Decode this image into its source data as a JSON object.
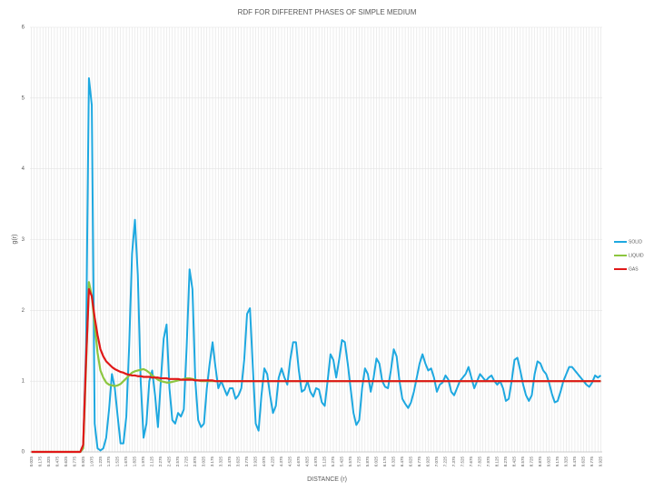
{
  "chart_data": {
    "type": "line",
    "title": "RDF FOR DIFFERENT PHASES OF SIMPLE MEDIUM",
    "x_label": "DISTANCE (r)",
    "y_label": "g(r)",
    "xlim": [
      0,
      9.95
    ],
    "ylim": [
      0,
      6
    ],
    "yticks": [
      0,
      1,
      2,
      3,
      4,
      5,
      6
    ],
    "grid": true,
    "legend": "right",
    "xticks": [
      0.025,
      0.175,
      0.325,
      0.475,
      0.625,
      0.775,
      0.925,
      1.075,
      1.225,
      1.375,
      1.525,
      1.675,
      1.825,
      1.975,
      2.125,
      2.275,
      2.425,
      2.575,
      2.725,
      2.875,
      3.025,
      3.175,
      3.325,
      3.475,
      3.625,
      3.775,
      3.925,
      4.075,
      4.225,
      4.375,
      4.525,
      4.675,
      4.825,
      4.975,
      5.125,
      5.275,
      5.425,
      5.575,
      5.725,
      5.875,
      6.025,
      6.175,
      6.325,
      6.475,
      6.625,
      6.775,
      6.925,
      7.075,
      7.225,
      7.375,
      7.525,
      7.675,
      7.825,
      7.975,
      8.125,
      8.275,
      8.425,
      8.575,
      8.725,
      8.875,
      9.025,
      9.175,
      9.325,
      9.475,
      9.625,
      9.775,
      9.925
    ],
    "x": [
      0.025,
      0.075,
      0.125,
      0.175,
      0.225,
      0.275,
      0.325,
      0.375,
      0.425,
      0.475,
      0.525,
      0.575,
      0.625,
      0.675,
      0.725,
      0.775,
      0.825,
      0.875,
      0.925,
      0.975,
      1.025,
      1.075,
      1.125,
      1.175,
      1.225,
      1.275,
      1.325,
      1.375,
      1.425,
      1.475,
      1.525,
      1.575,
      1.625,
      1.675,
      1.725,
      1.775,
      1.825,
      1.875,
      1.925,
      1.975,
      2.025,
      2.075,
      2.125,
      2.175,
      2.225,
      2.275,
      2.325,
      2.375,
      2.425,
      2.475,
      2.525,
      2.575,
      2.625,
      2.675,
      2.725,
      2.775,
      2.825,
      2.875,
      2.925,
      2.975,
      3.025,
      3.075,
      3.125,
      3.175,
      3.225,
      3.275,
      3.325,
      3.375,
      3.425,
      3.475,
      3.525,
      3.575,
      3.625,
      3.675,
      3.725,
      3.775,
      3.825,
      3.875,
      3.925,
      3.975,
      4.025,
      4.075,
      4.125,
      4.175,
      4.225,
      4.275,
      4.325,
      4.375,
      4.425,
      4.475,
      4.525,
      4.575,
      4.625,
      4.675,
      4.725,
      4.775,
      4.825,
      4.875,
      4.925,
      4.975,
      5.025,
      5.075,
      5.125,
      5.175,
      5.225,
      5.275,
      5.325,
      5.375,
      5.425,
      5.475,
      5.525,
      5.575,
      5.625,
      5.675,
      5.725,
      5.775,
      5.825,
      5.875,
      5.925,
      5.975,
      6.025,
      6.075,
      6.125,
      6.175,
      6.225,
      6.275,
      6.325,
      6.375,
      6.425,
      6.475,
      6.525,
      6.575,
      6.625,
      6.675,
      6.725,
      6.775,
      6.825,
      6.875,
      6.925,
      6.975,
      7.025,
      7.075,
      7.125,
      7.175,
      7.225,
      7.275,
      7.325,
      7.375,
      7.425,
      7.475,
      7.525,
      7.575,
      7.625,
      7.675,
      7.725,
      7.775,
      7.825,
      7.875,
      7.925,
      7.975,
      8.025,
      8.075,
      8.125,
      8.175,
      8.225,
      8.275,
      8.325,
      8.375,
      8.425,
      8.475,
      8.525,
      8.575,
      8.625,
      8.675,
      8.725,
      8.775,
      8.825,
      8.875,
      8.925,
      8.975,
      9.025,
      9.075,
      9.125,
      9.175,
      9.225,
      9.275,
      9.325,
      9.375,
      9.425,
      9.475,
      9.525,
      9.575,
      9.625,
      9.675,
      9.725,
      9.775,
      9.825,
      9.875,
      9.925
    ],
    "series": [
      {
        "name": "SOLID",
        "color": "#1ea8e0",
        "values": [
          0,
          0,
          0,
          0,
          0,
          0,
          0,
          0,
          0,
          0,
          0,
          0,
          0,
          0,
          0,
          0,
          0,
          0,
          0.05,
          1.5,
          5.28,
          4.9,
          0.4,
          0.05,
          0.02,
          0.05,
          0.2,
          0.6,
          1.1,
          0.9,
          0.5,
          0.12,
          0.12,
          0.5,
          1.5,
          2.8,
          3.28,
          2.5,
          1.0,
          0.2,
          0.4,
          1.0,
          1.15,
          0.8,
          0.35,
          1.0,
          1.6,
          1.8,
          0.9,
          0.45,
          0.4,
          0.55,
          0.5,
          0.6,
          1.5,
          2.58,
          2.3,
          1.0,
          0.45,
          0.35,
          0.4,
          0.9,
          1.25,
          1.55,
          1.2,
          0.9,
          1.0,
          0.9,
          0.8,
          0.9,
          0.9,
          0.75,
          0.8,
          0.9,
          1.3,
          1.95,
          2.03,
          1.2,
          0.4,
          0.3,
          0.8,
          1.18,
          1.1,
          0.8,
          0.55,
          0.65,
          1.05,
          1.18,
          1.05,
          0.95,
          1.3,
          1.55,
          1.55,
          1.15,
          0.85,
          0.88,
          1.0,
          0.85,
          0.78,
          0.9,
          0.88,
          0.7,
          0.65,
          1.0,
          1.38,
          1.3,
          1.05,
          1.3,
          1.58,
          1.55,
          1.25,
          0.9,
          0.55,
          0.38,
          0.45,
          0.9,
          1.18,
          1.1,
          0.85,
          1.05,
          1.32,
          1.25,
          1.0,
          0.92,
          0.9,
          1.15,
          1.45,
          1.35,
          1.0,
          0.75,
          0.68,
          0.62,
          0.7,
          0.85,
          1.05,
          1.25,
          1.38,
          1.25,
          1.15,
          1.18,
          1.05,
          0.85,
          0.95,
          0.98,
          1.08,
          1.02,
          0.85,
          0.8,
          0.9,
          1.0,
          1.05,
          1.1,
          1.2,
          1.05,
          0.9,
          1.0,
          1.1,
          1.05,
          1.0,
          1.05,
          1.08,
          1.0,
          0.95,
          1.0,
          0.9,
          0.72,
          0.75,
          1.0,
          1.3,
          1.33,
          1.15,
          0.95,
          0.8,
          0.72,
          0.8,
          1.1,
          1.28,
          1.25,
          1.15,
          1.1,
          0.98,
          0.82,
          0.7,
          0.72,
          0.85,
          1.0,
          1.1,
          1.2,
          1.2,
          1.15,
          1.1,
          1.05,
          1.0,
          0.95,
          0.92,
          0.98,
          1.08,
          1.05,
          1.08
        ]
      },
      {
        "name": "LIQUID",
        "color": "#8cc63f",
        "values": [
          0,
          0,
          0,
          0,
          0,
          0,
          0,
          0,
          0,
          0,
          0,
          0,
          0,
          0,
          0,
          0,
          0,
          0,
          0.05,
          1.2,
          2.4,
          2.2,
          1.8,
          1.4,
          1.15,
          1.05,
          0.98,
          0.95,
          0.94,
          0.93,
          0.94,
          0.96,
          1.0,
          1.04,
          1.08,
          1.12,
          1.14,
          1.15,
          1.16,
          1.17,
          1.15,
          1.12,
          1.08,
          1.05,
          1.02,
          1.0,
          0.99,
          0.98,
          0.98,
          0.99,
          1.0,
          1.01,
          1.02,
          1.03,
          1.04,
          1.04,
          1.03,
          1.02,
          1.01,
          1.0,
          1,
          1,
          1,
          1,
          1,
          1,
          1,
          1,
          1,
          1,
          1,
          1,
          1,
          1,
          1,
          1,
          1,
          1,
          1,
          1,
          1,
          1,
          1,
          1,
          1,
          1,
          1,
          1,
          1,
          1,
          1,
          1,
          1,
          1,
          1,
          1,
          1,
          1,
          1,
          1,
          1,
          1,
          1,
          1,
          1,
          1,
          1,
          1,
          1,
          1,
          1,
          1,
          1,
          1,
          1,
          1,
          1,
          1,
          1,
          1,
          1,
          1,
          1,
          1,
          1,
          1,
          1,
          1,
          1,
          1,
          1,
          1,
          1,
          1,
          1,
          1,
          1,
          1,
          1,
          1,
          1,
          1,
          1,
          1,
          1,
          1,
          1,
          1,
          1,
          1,
          1,
          1,
          1,
          1,
          1,
          1,
          1,
          1,
          1,
          1,
          1,
          1,
          1,
          1,
          1,
          1,
          1,
          1,
          1,
          1,
          1,
          1,
          1,
          1,
          1,
          1,
          1,
          1,
          1,
          1,
          1,
          1,
          1,
          1,
          1,
          1,
          1,
          1,
          1,
          1,
          1,
          1,
          1,
          1,
          1,
          1,
          1,
          1,
          1
        ]
      },
      {
        "name": "GAS",
        "color": "#e01818",
        "values": [
          0,
          0,
          0,
          0,
          0,
          0,
          0,
          0,
          0,
          0,
          0,
          0,
          0,
          0,
          0,
          0,
          0,
          0,
          0.1,
          1.3,
          2.3,
          2.2,
          1.9,
          1.65,
          1.45,
          1.35,
          1.28,
          1.24,
          1.2,
          1.17,
          1.15,
          1.13,
          1.12,
          1.1,
          1.09,
          1.08,
          1.08,
          1.07,
          1.07,
          1.06,
          1.06,
          1.06,
          1.05,
          1.05,
          1.05,
          1.04,
          1.04,
          1.04,
          1.03,
          1.03,
          1.03,
          1.03,
          1.02,
          1.02,
          1.02,
          1.02,
          1.02,
          1.01,
          1.01,
          1.01,
          1.01,
          1.01,
          1.01,
          1.01,
          1,
          1,
          1,
          1,
          1,
          1,
          1,
          1,
          1,
          1,
          1,
          1,
          1,
          1,
          1,
          1,
          1,
          1,
          1,
          1,
          1,
          1,
          1,
          1,
          1,
          1,
          1,
          1,
          1,
          1,
          1,
          1,
          1,
          1,
          1,
          1,
          1,
          1,
          1,
          1,
          1,
          1,
          1,
          1,
          1,
          1,
          1,
          1,
          1,
          1,
          1,
          1,
          1,
          1,
          1,
          1,
          1,
          1,
          1,
          1,
          1,
          1,
          1,
          1,
          1,
          1,
          1,
          1,
          1,
          1,
          1,
          1,
          1,
          1,
          1,
          1,
          1,
          1,
          1,
          1,
          1,
          1,
          1,
          1,
          1,
          1,
          1,
          1,
          1,
          1,
          1,
          1,
          1,
          1,
          1,
          1,
          1,
          1,
          1,
          1,
          1,
          1,
          1,
          1,
          1,
          1,
          1,
          1,
          1,
          1,
          1,
          1,
          1,
          1,
          1,
          1,
          1,
          1,
          1,
          1,
          1,
          1,
          1,
          1,
          1,
          1,
          1,
          1,
          1,
          1,
          1,
          1,
          1,
          1,
          1
        ]
      }
    ]
  }
}
